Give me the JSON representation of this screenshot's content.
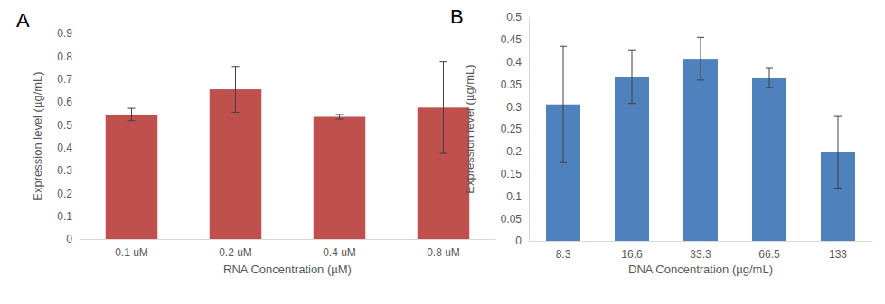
{
  "chart_data": [
    {
      "type": "bar",
      "title": "A",
      "categories": [
        "0.1 uM",
        "0.2 uM",
        "0.4 uM",
        "0.8 uM"
      ],
      "values": [
        0.545,
        0.655,
        0.535,
        0.575
      ],
      "errors": [
        0.027,
        0.1,
        0.01,
        0.2
      ],
      "color": "#c0504d",
      "x_label": "RNA Concentration (µM)",
      "y_label": "Expression level (µg/mL)",
      "ylim": [
        0,
        0.9
      ],
      "yticks": [
        0,
        0.1,
        0.2,
        0.3,
        0.4,
        0.5,
        0.6,
        0.7,
        0.8,
        0.9
      ],
      "grid": false
    },
    {
      "type": "bar",
      "title": "B",
      "categories": [
        "8.3",
        "16.6",
        "33.3",
        "66.5",
        "133"
      ],
      "values": [
        0.305,
        0.367,
        0.407,
        0.365,
        0.198
      ],
      "errors": [
        0.13,
        0.06,
        0.048,
        0.022,
        0.08
      ],
      "color": "#4f81bd",
      "x_label": "DNA Concentration (µg/mL)",
      "y_label": "Expression level (µg/mL)",
      "ylim": [
        0,
        0.5
      ],
      "yticks": [
        0,
        0.05,
        0.1,
        0.15,
        0.2,
        0.25,
        0.3,
        0.35,
        0.4,
        0.45,
        0.5
      ],
      "grid": false
    }
  ]
}
